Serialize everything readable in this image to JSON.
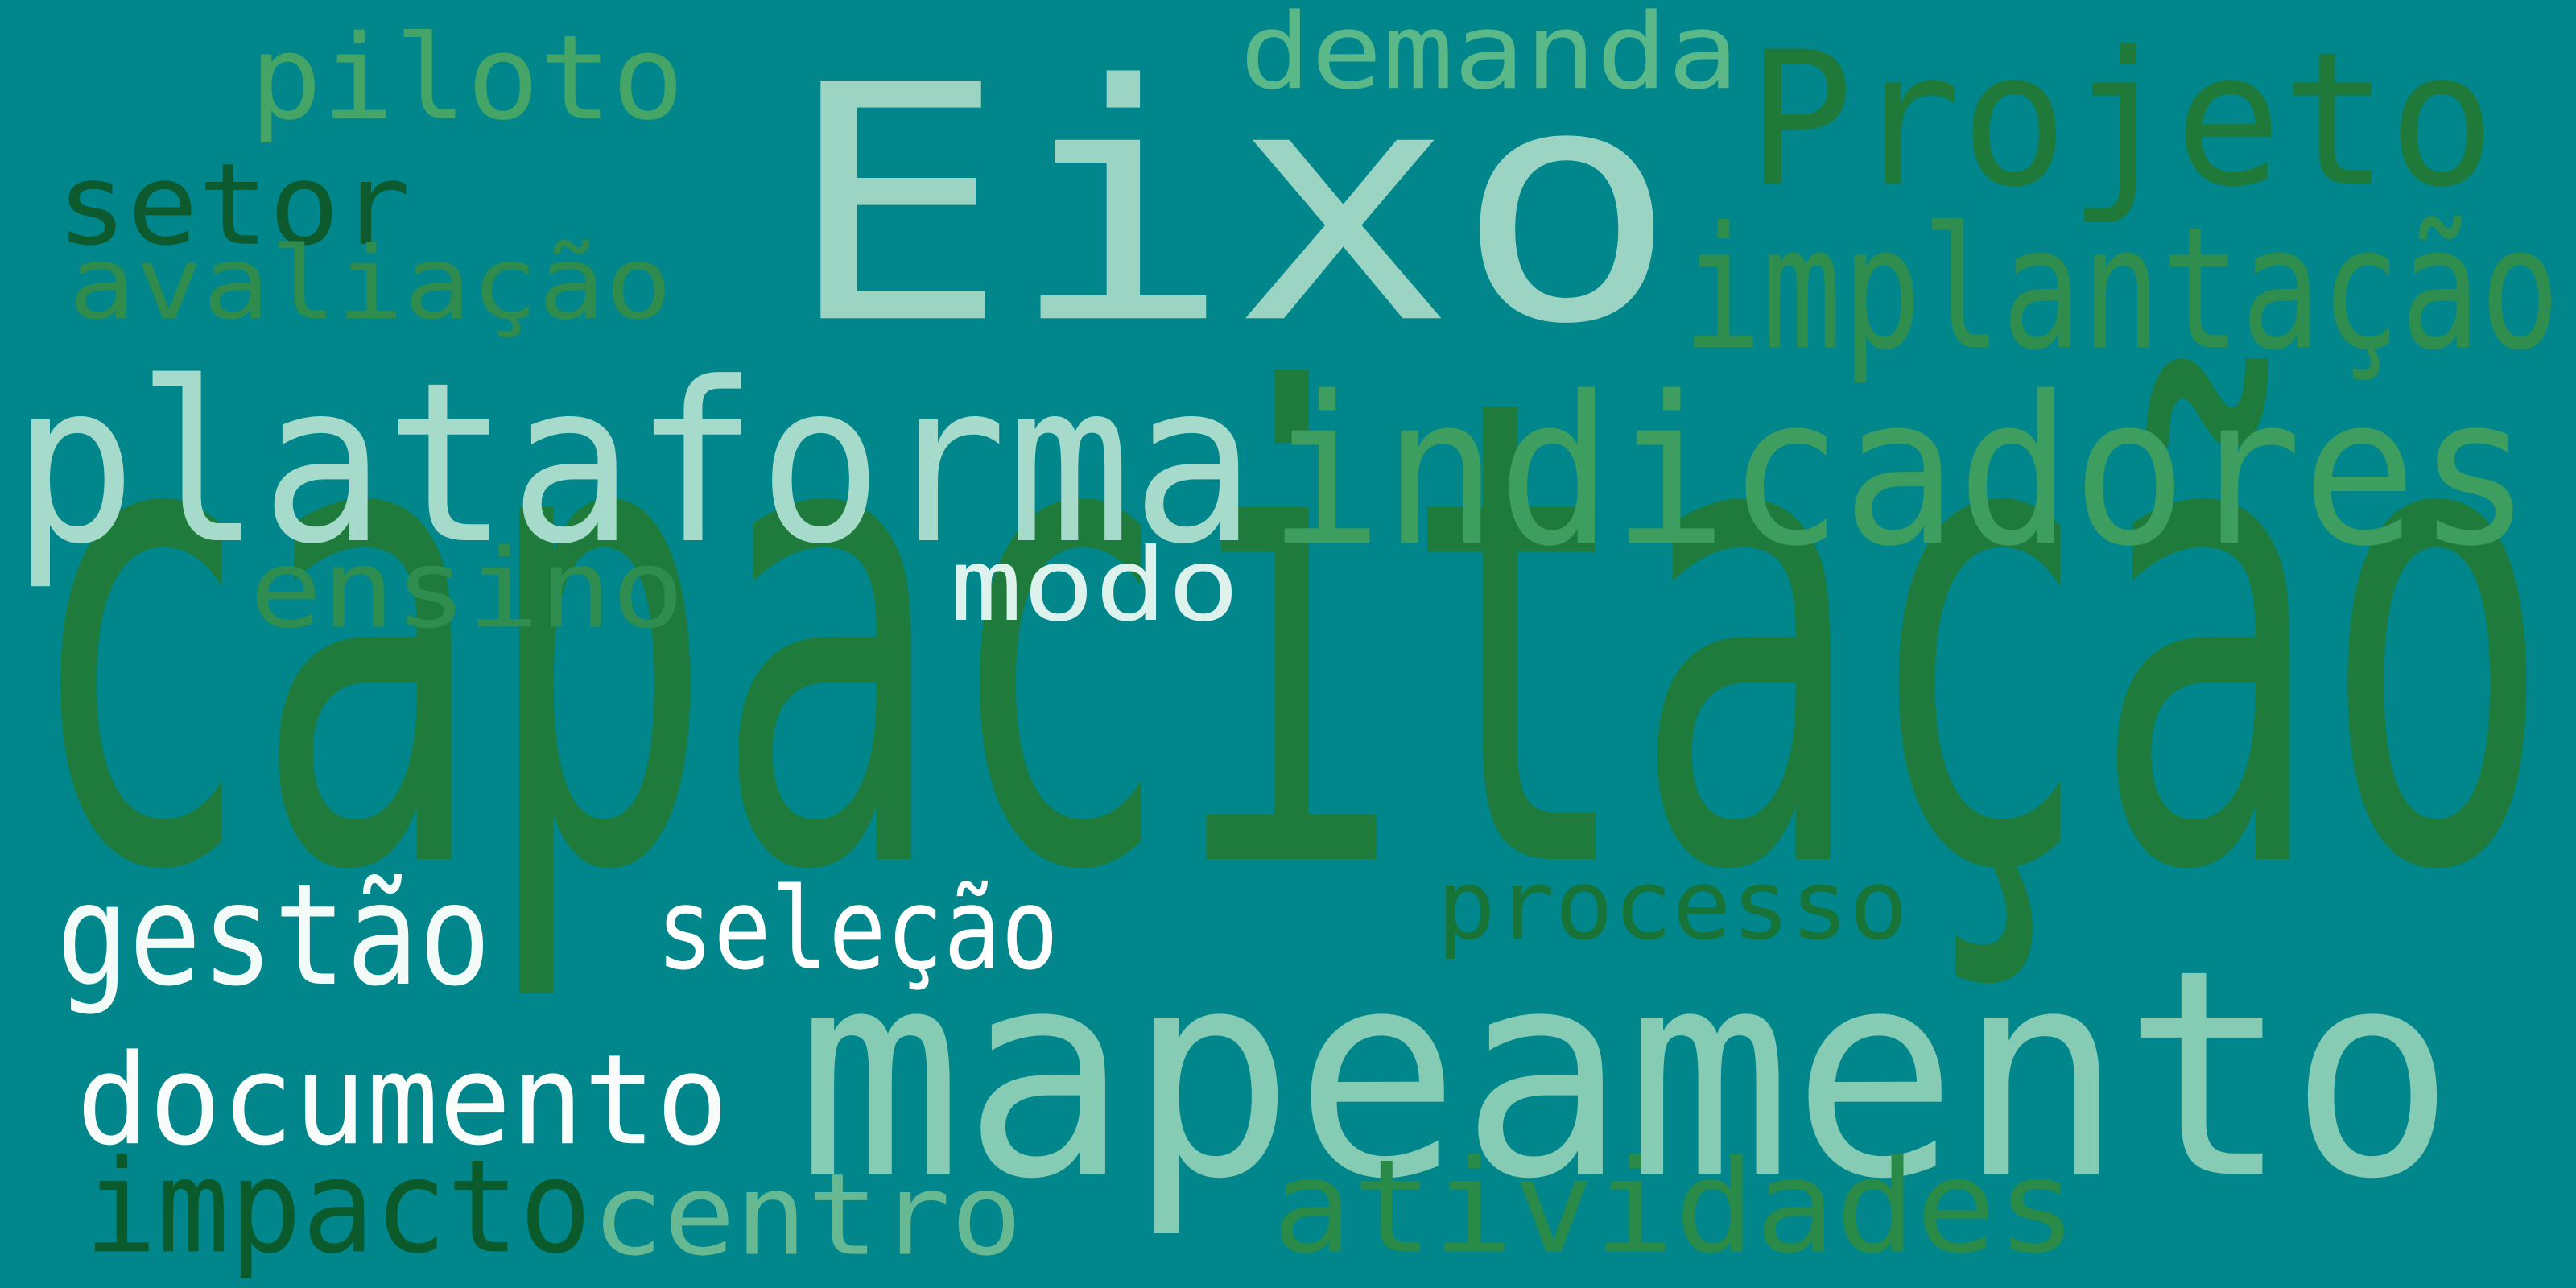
{
  "background_color": "#00868B",
  "words": [
    {
      "id": "capacitacao",
      "text": "capacitação",
      "color": "#1E7B3C"
    },
    {
      "id": "eixo",
      "text": "Eixo",
      "color": "#9BD4C3"
    },
    {
      "id": "mapeamento",
      "text": "mapeamento",
      "color": "#86CBB4"
    },
    {
      "id": "plataforma",
      "text": "plataforma",
      "color": "#A6DBCC"
    },
    {
      "id": "indicadores",
      "text": "indicadores",
      "color": "#3D9E5F"
    },
    {
      "id": "projeto",
      "text": "Projeto",
      "color": "#1F7A3A"
    },
    {
      "id": "implantacao",
      "text": "implantação",
      "color": "#2F8D4E"
    },
    {
      "id": "demanda",
      "text": "demanda",
      "color": "#5BB889"
    },
    {
      "id": "piloto",
      "text": "piloto",
      "color": "#44A566"
    },
    {
      "id": "setor",
      "text": "setor",
      "color": "#0D5A2E"
    },
    {
      "id": "avaliacao",
      "text": "avaliação",
      "color": "#2F8C4C"
    },
    {
      "id": "ensino",
      "text": "ensino",
      "color": "#2F8E4F"
    },
    {
      "id": "modo",
      "text": "modo",
      "color": "#DDF2EC"
    },
    {
      "id": "gestao",
      "text": "gestão",
      "color": "#F2FBF8"
    },
    {
      "id": "selecao",
      "text": "seleção",
      "color": "#FFFFFF"
    },
    {
      "id": "processo",
      "text": "processo",
      "color": "#177336"
    },
    {
      "id": "documento",
      "text": "documento",
      "color": "#F8FCFA"
    },
    {
      "id": "impacto",
      "text": "impacto",
      "color": "#0A5A2C"
    },
    {
      "id": "centro",
      "text": "centro",
      "color": "#66B993"
    },
    {
      "id": "atividades",
      "text": "atividades",
      "color": "#2A8A48"
    }
  ]
}
